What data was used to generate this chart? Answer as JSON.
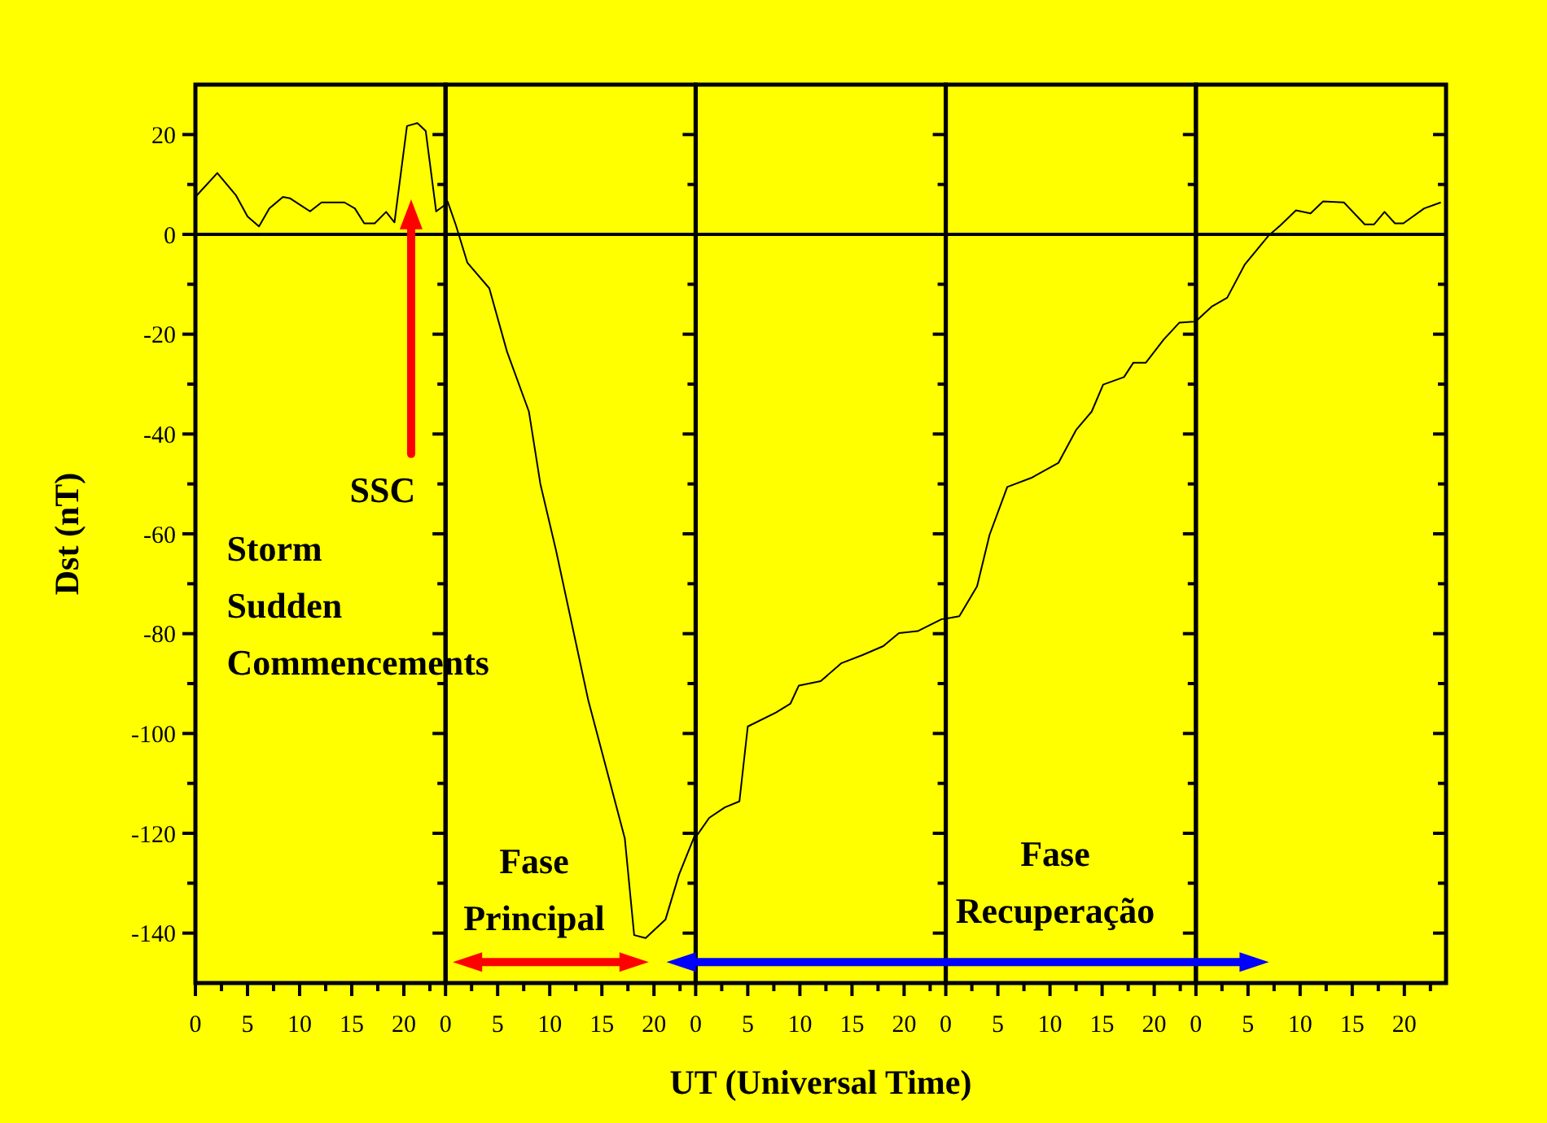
{
  "chart_data": [
    {
      "type": "line",
      "ylabel": "Dst (nT)",
      "x": [
        0,
        2.1,
        3.9,
        5,
        6.1,
        7.1,
        8.4,
        9.1,
        11,
        12.1,
        14.3,
        15.3,
        16.2,
        17.2,
        18.3,
        19.1,
        20.3,
        21.3,
        22.1,
        23.1,
        24
      ],
      "series": [
        {
          "color": "#000000",
          "values": [
            7.5,
            12.3,
            7.8,
            3.6,
            1.6,
            5.2,
            7.5,
            7.2,
            4.6,
            6.4,
            6.4,
            5.2,
            2.2,
            2.2,
            4.5,
            2.4,
            21.7,
            22.3,
            20.7,
            4.6,
            6
          ]
        }
      ],
      "xlim": [
        0,
        24
      ],
      "ylim": [
        -150,
        30
      ],
      "xticks": [
        0,
        {
          "value": 2.5,
          "label": null
        },
        5,
        {
          "value": 7.5,
          "label": null
        },
        10,
        {
          "value": 12.5,
          "label": null
        },
        15,
        {
          "value": 17.5,
          "label": null
        },
        20,
        {
          "value": 22.5,
          "label": null
        }
      ],
      "yticks": [
        20,
        {
          "value": 10,
          "label": null
        },
        0,
        {
          "value": -10,
          "label": null
        },
        -20,
        {
          "value": -30,
          "label": null
        },
        -40,
        {
          "value": -50,
          "label": null
        },
        -60,
        {
          "value": -70,
          "label": null
        },
        -80,
        {
          "value": -90,
          "label": null
        },
        -100,
        {
          "value": -110,
          "label": null
        },
        -120,
        {
          "value": -130,
          "label": null
        },
        -140
      ],
      "ref_lines": [
        {
          "axis": "y",
          "value": 0,
          "color": "#000000"
        }
      ],
      "annotations": [
        "SSC",
        "Storm Sudden Commencements"
      ]
    },
    {
      "type": "line",
      "x": [
        0,
        0.2,
        1,
        2.1,
        4.2,
        5.9,
        8,
        9.1,
        10.6,
        13.7,
        17.2,
        18.1,
        19.2,
        21.1,
        22.4,
        23.9,
        24
      ],
      "series": [
        {
          "color": "#000000",
          "values": [
            6,
            6.6,
            1.8,
            -5.7,
            -10.8,
            -23.5,
            -35.5,
            -50,
            -63.3,
            -93.4,
            -121,
            -140.4,
            -141,
            -137.3,
            -128.3,
            -120.5,
            -120.8
          ]
        }
      ],
      "xlim": [
        0,
        24
      ],
      "ylim": [
        -150,
        30
      ],
      "xticks": [
        0,
        {
          "value": 2.5,
          "label": null
        },
        5,
        {
          "value": 7.5,
          "label": null
        },
        10,
        {
          "value": 12.5,
          "label": null
        },
        15,
        {
          "value": 17.5,
          "label": null
        },
        20,
        {
          "value": 22.5,
          "label": null
        }
      ],
      "yticks": [
        20,
        {
          "value": 10,
          "label": null
        },
        0,
        {
          "value": -10,
          "label": null
        },
        -20,
        {
          "value": -30,
          "label": null
        },
        -40,
        {
          "value": -50,
          "label": null
        },
        -60,
        {
          "value": -70,
          "label": null
        },
        -80,
        {
          "value": -90,
          "label": null
        },
        -100,
        {
          "value": -110,
          "label": null
        },
        -120,
        {
          "value": -130,
          "label": null
        },
        -140
      ],
      "tick_labels": "x",
      "ref_lines": [
        {
          "axis": "y",
          "value": 0,
          "color": "#000000"
        }
      ],
      "annotations": [
        "Fase Principal"
      ]
    },
    {
      "type": "line",
      "xlabel": "UT (Universal Time)",
      "x": [
        0,
        1.3,
        2.8,
        4.2,
        5,
        7.7,
        9.1,
        9.9,
        12,
        14,
        16,
        18,
        19.5,
        21.3,
        23.6,
        24
      ],
      "series": [
        {
          "color": "#000000",
          "values": [
            -120.8,
            -116.9,
            -114.8,
            -113.6,
            -98.6,
            -95.8,
            -94,
            -90.4,
            -89.5,
            -85.9,
            -84.3,
            -82.5,
            -79.9,
            -79.5,
            -77.1,
            -77
          ]
        }
      ],
      "xlim": [
        0,
        24
      ],
      "ylim": [
        -150,
        30
      ],
      "xticks": [
        0,
        {
          "value": 2.5,
          "label": null
        },
        5,
        {
          "value": 7.5,
          "label": null
        },
        10,
        {
          "value": 12.5,
          "label": null
        },
        15,
        {
          "value": 17.5,
          "label": null
        },
        20,
        {
          "value": 22.5,
          "label": null
        }
      ],
      "yticks": [
        20,
        {
          "value": 10,
          "label": null
        },
        0,
        {
          "value": -10,
          "label": null
        },
        -20,
        {
          "value": -30,
          "label": null
        },
        -40,
        {
          "value": -50,
          "label": null
        },
        -60,
        {
          "value": -70,
          "label": null
        },
        -80,
        {
          "value": -90,
          "label": null
        },
        -100,
        {
          "value": -110,
          "label": null
        },
        -120,
        {
          "value": -130,
          "label": null
        },
        -140
      ],
      "tick_labels": "x",
      "ref_lines": [
        {
          "axis": "y",
          "value": 0,
          "color": "#000000"
        }
      ]
    },
    {
      "type": "line",
      "x": [
        0,
        1.3,
        3,
        4.2,
        5.9,
        8.2,
        10.8,
        12.5,
        14,
        15.1,
        17.1,
        18,
        19.2,
        20.9,
        22.4,
        23.8,
        24
      ],
      "series": [
        {
          "color": "#000000",
          "values": [
            -77,
            -76.5,
            -70.5,
            -60.2,
            -50.6,
            -48.8,
            -45.8,
            -39.2,
            -35.5,
            -30.1,
            -28.6,
            -25.7,
            -25.7,
            -21.1,
            -17.7,
            -17.5,
            -17.4
          ]
        }
      ],
      "xlim": [
        0,
        24
      ],
      "ylim": [
        -150,
        30
      ],
      "xticks": [
        0,
        {
          "value": 2.5,
          "label": null
        },
        5,
        {
          "value": 7.5,
          "label": null
        },
        10,
        {
          "value": 12.5,
          "label": null
        },
        15,
        {
          "value": 17.5,
          "label": null
        },
        20,
        {
          "value": 22.5,
          "label": null
        }
      ],
      "yticks": [
        20,
        {
          "value": 10,
          "label": null
        },
        0,
        {
          "value": -10,
          "label": null
        },
        -20,
        {
          "value": -30,
          "label": null
        },
        -40,
        {
          "value": -50,
          "label": null
        },
        -60,
        {
          "value": -70,
          "label": null
        },
        -80,
        {
          "value": -90,
          "label": null
        },
        -100,
        {
          "value": -110,
          "label": null
        },
        -120,
        {
          "value": -130,
          "label": null
        },
        -140
      ],
      "tick_labels": "x",
      "ref_lines": [
        {
          "axis": "y",
          "value": 0,
          "color": "#000000"
        }
      ],
      "annotations": [
        "Fase Recuperação"
      ]
    },
    {
      "type": "line",
      "x": [
        0,
        1.5,
        3,
        4.7,
        7,
        8.1,
        9.6,
        11,
        12.2,
        14.2,
        16.2,
        17.1,
        18.1,
        19.1,
        19.9,
        21.9,
        23.5
      ],
      "series": [
        {
          "color": "#000000",
          "values": [
            -17.4,
            -14.5,
            -12.7,
            -6,
            -0.2,
            1.8,
            4.8,
            4.2,
            6.6,
            6.4,
            2,
            2,
            4.5,
            2.2,
            2.2,
            5.2,
            6.4
          ]
        }
      ],
      "xlim": [
        0,
        24
      ],
      "ylim": [
        -150,
        30
      ],
      "xticks": [
        0,
        {
          "value": 2.5,
          "label": null
        },
        5,
        {
          "value": 7.5,
          "label": null
        },
        10,
        {
          "value": 12.5,
          "label": null
        },
        15,
        {
          "value": 17.5,
          "label": null
        },
        20,
        {
          "value": 22.5,
          "label": null
        }
      ],
      "yticks": [
        20,
        {
          "value": 10,
          "label": null
        },
        0,
        {
          "value": -10,
          "label": null
        },
        -20,
        {
          "value": -30,
          "label": null
        },
        -40,
        {
          "value": -50,
          "label": null
        },
        -60,
        {
          "value": -70,
          "label": null
        },
        -80,
        {
          "value": -90,
          "label": null
        },
        -100,
        {
          "value": -110,
          "label": null
        },
        -120,
        {
          "value": -130,
          "label": null
        },
        -140
      ],
      "tick_labels": "x",
      "ref_lines": [
        {
          "axis": "y",
          "value": 0,
          "color": "#000000"
        }
      ]
    }
  ]
}
